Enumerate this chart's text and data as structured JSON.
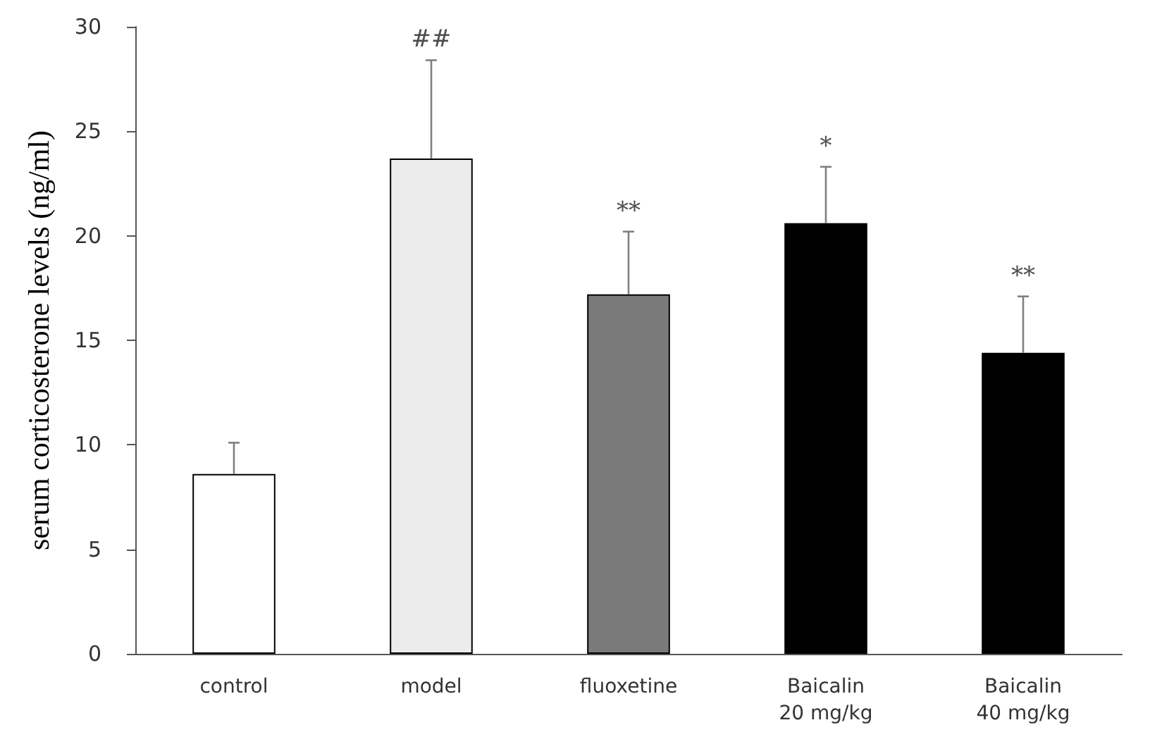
{
  "chart_data": {
    "type": "bar",
    "ylabel": "serum corticosterone levels (ng/ml)",
    "categories": [
      "control",
      "model",
      "fluoxetine",
      "Baicalin\n20 mg/kg",
      "Baicalin\n40 mg/kg"
    ],
    "values": [
      8.6,
      23.7,
      17.2,
      20.6,
      14.4
    ],
    "colors": [
      "#ffffff",
      "#ececec",
      "#7a7a7a",
      "#000000",
      "#000000"
    ],
    "errors": [
      [
        8.6,
        10.1
      ],
      [
        23.7,
        28.4
      ],
      [
        17.2,
        20.2
      ],
      [
        20.6,
        23.3
      ],
      [
        14.4,
        17.1
      ]
    ],
    "ylim": [
      0,
      30
    ],
    "yticks": [
      0,
      5,
      10,
      15,
      20,
      25,
      30
    ],
    "grid": false,
    "annotations": [
      {
        "text": "##",
        "x": "model",
        "y": 28.4
      },
      {
        "text": "**",
        "x": "fluoxetine",
        "y": 20.2
      },
      {
        "text": "*",
        "x": "Baicalin\n20 mg/kg",
        "y": 23.3
      },
      {
        "text": "**",
        "x": "Baicalin\n40 mg/kg",
        "y": 17.1
      }
    ]
  }
}
